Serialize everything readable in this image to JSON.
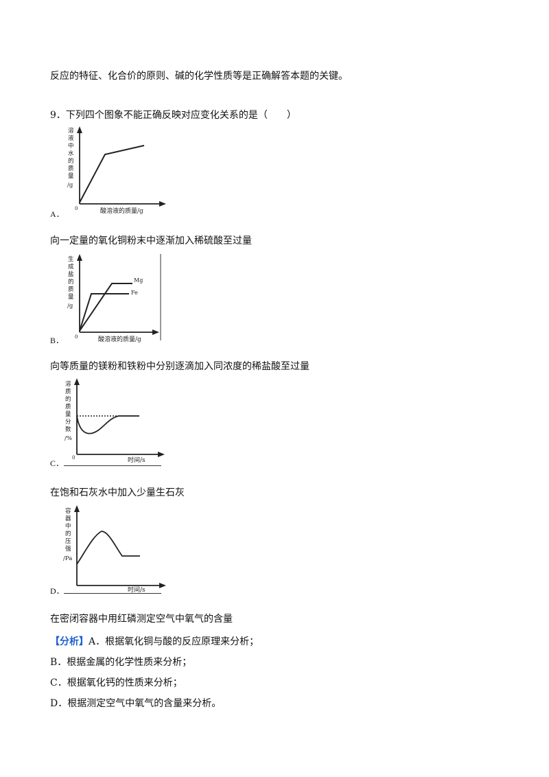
{
  "intro": "反应的特征、化合价的原则、碱的化学性质等是正确解答本题的关键。",
  "question": {
    "number": "9．",
    "stem": "下列四个图象不能正确反映对应变化关系的是（　　）"
  },
  "options": [
    {
      "label": "A．",
      "description": "向一定量的氧化铜粉末中逐渐加入稀硫酸至过量",
      "graph": {
        "ylabel": [
          "溶",
          "液",
          "中",
          "水",
          "的",
          "质",
          "量",
          "/g"
        ],
        "xlabel": "酸溶液的质量/g",
        "origin": "0"
      }
    },
    {
      "label": "B．",
      "description": "向等质量的镁粉和铁粉中分别逐滴加入同浓度的稀盐酸至过量",
      "graph": {
        "ylabel": [
          "生",
          "成",
          "盐",
          "的",
          "质",
          "量",
          "/g"
        ],
        "xlabel": "酸溶液的质量/g",
        "origin": "0",
        "series": [
          "Mg",
          "Fe"
        ]
      }
    },
    {
      "label": "C．",
      "description": "在饱和石灰水中加入少量生石灰",
      "graph": {
        "ylabel": [
          "溶",
          "质",
          "的",
          "质",
          "量",
          "分",
          "数",
          "/%"
        ],
        "xlabel": "时间/s",
        "origin": "0"
      }
    },
    {
      "label": "D．",
      "description": "在密闭容器中用红磷测定空气中氧气的含量",
      "graph": {
        "ylabel": [
          "容",
          "器",
          "中",
          "的",
          "压",
          "强",
          "/Pa"
        ],
        "xlabel": "时间/s",
        "origin": ""
      }
    }
  ],
  "analysis": {
    "tag": "【分析】",
    "lines": [
      "A．根据氧化铜与酸的反应原理来分析；",
      "B．根据金属的化学性质来分析；",
      "C．根据氧化钙的性质来分析；",
      "D．根据测定空气中氧气的含量来分析。"
    ]
  }
}
